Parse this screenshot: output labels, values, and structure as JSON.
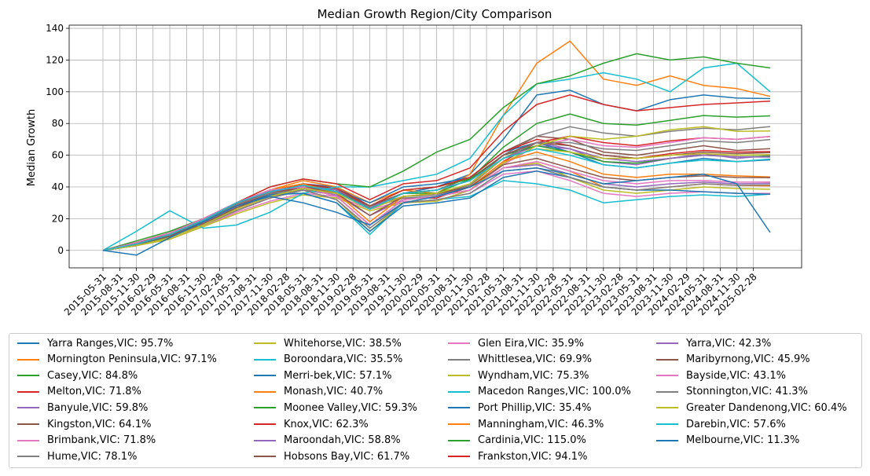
{
  "chart_data": {
    "type": "line",
    "title": "Median Growth Region/City Comparison",
    "xlabel": "",
    "ylabel": "Median Growth",
    "ylim": [
      -11,
      142
    ],
    "yticks": [
      0,
      20,
      40,
      60,
      80,
      100,
      120,
      140
    ],
    "grid": true,
    "legend_position": "below",
    "x_tick_labels": [
      "2015-05-31",
      "2015-08-31",
      "2015-11-30",
      "2016-02-29",
      "2016-05-31",
      "2016-08-31",
      "2016-11-30",
      "2017-02-28",
      "2017-05-31",
      "2017-08-31",
      "2017-11-30",
      "2018-02-28",
      "2018-05-31",
      "2018-08-31",
      "2018-11-30",
      "2019-02-28",
      "2019-05-31",
      "2019-08-31",
      "2019-11-30",
      "2020-02-29",
      "2020-05-31",
      "2020-08-31",
      "2020-11-30",
      "2021-02-28",
      "2021-05-31",
      "2021-08-31",
      "2021-11-30",
      "2022-02-28",
      "2022-05-31",
      "2022-08-31",
      "2022-11-30",
      "2023-02-28",
      "2023-05-31",
      "2023-08-31",
      "2023-11-30",
      "2024-02-29",
      "2024-05-31",
      "2024-08-31",
      "2024-11-30",
      "2025-02-28"
    ],
    "series_x": [
      "2015-05-31",
      "2015-11-30",
      "2016-05-31",
      "2016-11-30",
      "2017-05-31",
      "2017-11-30",
      "2018-05-31",
      "2018-11-30",
      "2019-05-31",
      "2019-11-30",
      "2020-05-31",
      "2020-11-30",
      "2021-05-31",
      "2021-11-30",
      "2022-05-31",
      "2022-11-30",
      "2023-05-31",
      "2023-11-30",
      "2024-05-31",
      "2024-11-30",
      "2025-05-31"
    ],
    "series": [
      {
        "name": "Yarra Ranges,VIC",
        "label": "Yarra Ranges,VIC: 95.7%",
        "color": "#1f77b4",
        "values": [
          0,
          3,
          8,
          18,
          28,
          36,
          42,
          40,
          28,
          36,
          40,
          48,
          70,
          98,
          101,
          92,
          88,
          95,
          98,
          96,
          95.7
        ]
      },
      {
        "name": "Mornington Peninsula,VIC",
        "label": "Mornington Peninsula,VIC: 97.1%",
        "color": "#ff7f0e",
        "values": [
          0,
          5,
          10,
          18,
          28,
          38,
          44,
          40,
          30,
          38,
          36,
          48,
          85,
          118,
          132,
          108,
          104,
          110,
          104,
          102,
          97.1
        ]
      },
      {
        "name": "Casey,VIC",
        "label": "Casey,VIC: 84.8%",
        "color": "#2ca02c",
        "values": [
          0,
          4,
          9,
          17,
          27,
          35,
          40,
          38,
          28,
          36,
          36,
          45,
          65,
          80,
          86,
          80,
          79,
          82,
          85,
          84,
          84.8
        ]
      },
      {
        "name": "Melton,VIC",
        "label": "Melton,VIC: 71.8%",
        "color": "#d62728",
        "values": [
          0,
          4,
          8,
          16,
          25,
          33,
          38,
          36,
          27,
          33,
          33,
          40,
          56,
          68,
          72,
          68,
          66,
          69,
          71,
          70,
          71.8
        ]
      },
      {
        "name": "Banyule,VIC",
        "label": "Banyule,VIC: 59.8%",
        "color": "#9467bd",
        "values": [
          0,
          3,
          8,
          17,
          27,
          34,
          38,
          35,
          22,
          32,
          34,
          42,
          58,
          66,
          64,
          56,
          54,
          58,
          61,
          58,
          59.8
        ]
      },
      {
        "name": "Kingston,VIC",
        "label": "Kingston,VIC: 64.1%",
        "color": "#8c564b",
        "values": [
          0,
          4,
          9,
          18,
          28,
          36,
          41,
          38,
          26,
          36,
          38,
          46,
          62,
          72,
          70,
          62,
          60,
          63,
          66,
          63,
          64.1
        ]
      },
      {
        "name": "Brimbank,VIC",
        "label": "Brimbank,VIC: 71.8%",
        "color": "#e377c2",
        "values": [
          0,
          3,
          7,
          15,
          24,
          31,
          36,
          34,
          26,
          31,
          31,
          38,
          54,
          66,
          70,
          66,
          65,
          68,
          71,
          70,
          71.8
        ]
      },
      {
        "name": "Hume,VIC",
        "label": "Hume,VIC: 78.1%",
        "color": "#7f7f7f",
        "values": [
          0,
          4,
          9,
          17,
          26,
          34,
          39,
          37,
          28,
          34,
          35,
          42,
          60,
          72,
          78,
          74,
          72,
          75,
          77,
          76,
          78.1
        ]
      },
      {
        "name": "Whitehorse,VIC",
        "label": "Whitehorse,VIC: 38.5%",
        "color": "#bcbd22",
        "values": [
          0,
          5,
          11,
          19,
          29,
          36,
          38,
          32,
          12,
          30,
          34,
          38,
          52,
          55,
          46,
          38,
          36,
          38,
          40,
          39,
          38.5
        ]
      },
      {
        "name": "Boroondara,VIC",
        "label": "Boroondara,VIC: 35.5%",
        "color": "#17becf",
        "values": [
          0,
          4,
          10,
          18,
          28,
          36,
          36,
          30,
          10,
          30,
          32,
          34,
          44,
          42,
          38,
          30,
          32,
          34,
          35,
          34,
          35.5
        ]
      },
      {
        "name": "Merri-bek,VIC",
        "label": "Merri-bek,VIC: 57.1%",
        "color": "#1f77b4",
        "values": [
          0,
          4,
          10,
          19,
          30,
          38,
          42,
          38,
          30,
          40,
          42,
          46,
          62,
          68,
          62,
          54,
          52,
          55,
          58,
          56,
          57.1
        ]
      },
      {
        "name": "Monash,VIC",
        "label": "Monash,VIC: 40.7%",
        "color": "#ff7f0e",
        "values": [
          0,
          4,
          10,
          19,
          30,
          37,
          40,
          34,
          16,
          32,
          34,
          38,
          52,
          56,
          50,
          40,
          38,
          40,
          42,
          41,
          40.7
        ]
      },
      {
        "name": "Moonee Valley,VIC",
        "label": "Moonee Valley,VIC: 59.3%",
        "color": "#2ca02c",
        "values": [
          0,
          4,
          9,
          18,
          29,
          37,
          42,
          38,
          28,
          38,
          40,
          45,
          60,
          66,
          62,
          56,
          55,
          58,
          60,
          59,
          59.3
        ]
      },
      {
        "name": "Knox,VIC",
        "label": "Knox,VIC: 62.3%",
        "color": "#d62728",
        "values": [
          0,
          5,
          10,
          19,
          29,
          37,
          42,
          39,
          28,
          38,
          40,
          46,
          62,
          70,
          66,
          60,
          58,
          61,
          63,
          62,
          62.3
        ]
      },
      {
        "name": "Maroondah,VIC",
        "label": "Maroondah,VIC: 58.8%",
        "color": "#9467bd",
        "values": [
          0,
          4,
          9,
          18,
          28,
          36,
          41,
          38,
          27,
          36,
          38,
          44,
          60,
          68,
          64,
          58,
          56,
          58,
          60,
          59,
          58.8
        ]
      },
      {
        "name": "Hobsons Bay,VIC",
        "label": "Hobsons Bay,VIC: 61.7%",
        "color": "#8c564b",
        "values": [
          0,
          3,
          8,
          17,
          27,
          35,
          40,
          37,
          28,
          36,
          38,
          44,
          60,
          68,
          66,
          60,
          58,
          60,
          62,
          61,
          61.7
        ]
      },
      {
        "name": "Glen Eira,VIC",
        "label": "Glen Eira,VIC: 35.9%",
        "color": "#e377c2",
        "values": [
          0,
          4,
          10,
          19,
          29,
          36,
          38,
          32,
          14,
          30,
          32,
          36,
          48,
          50,
          44,
          36,
          34,
          36,
          37,
          36,
          35.9
        ]
      },
      {
        "name": "Whittlesea,VIC",
        "label": "Whittlesea,VIC: 69.9%",
        "color": "#7f7f7f",
        "values": [
          0,
          4,
          8,
          16,
          25,
          33,
          38,
          36,
          27,
          33,
          34,
          41,
          58,
          68,
          68,
          64,
          63,
          66,
          69,
          68,
          69.9
        ]
      },
      {
        "name": "Wyndham,VIC",
        "label": "Wyndham,VIC: 75.3%",
        "color": "#bcbd22",
        "values": [
          0,
          3,
          7,
          15,
          23,
          30,
          35,
          33,
          25,
          30,
          31,
          38,
          55,
          66,
          72,
          70,
          72,
          76,
          78,
          75,
          75.3
        ]
      },
      {
        "name": "Macedon Ranges,VIC",
        "label": "Macedon Ranges,VIC: 100.0%",
        "color": "#17becf",
        "values": [
          0,
          12,
          25,
          14,
          16,
          24,
          36,
          40,
          40,
          44,
          48,
          58,
          85,
          105,
          108,
          112,
          108,
          100,
          115,
          118,
          100.0
        ]
      },
      {
        "name": "Port Phillip,VIC",
        "label": "Port Phillip,VIC: 35.4%",
        "color": "#1f77b4",
        "values": [
          0,
          3,
          9,
          18,
          28,
          35,
          36,
          30,
          12,
          28,
          30,
          33,
          46,
          50,
          46,
          40,
          38,
          38,
          37,
          36,
          35.4
        ]
      },
      {
        "name": "Manningham,VIC",
        "label": "Manningham,VIC: 46.3%",
        "color": "#ff7f0e",
        "values": [
          0,
          4,
          10,
          19,
          30,
          38,
          42,
          36,
          18,
          34,
          36,
          40,
          56,
          62,
          56,
          48,
          46,
          48,
          48,
          47,
          46.3
        ]
      },
      {
        "name": "Cardinia,VIC",
        "label": "Cardinia,VIC: 115.0%",
        "color": "#2ca02c",
        "values": [
          0,
          6,
          12,
          20,
          30,
          40,
          45,
          42,
          40,
          50,
          62,
          70,
          90,
          105,
          110,
          118,
          124,
          120,
          122,
          118,
          115.0
        ]
      },
      {
        "name": "Frankston,VIC",
        "label": "Frankston,VIC: 94.1%",
        "color": "#d62728",
        "values": [
          0,
          5,
          11,
          20,
          30,
          40,
          45,
          42,
          32,
          42,
          44,
          52,
          75,
          92,
          98,
          92,
          88,
          90,
          92,
          93,
          94.1
        ]
      },
      {
        "name": "Yarra,VIC",
        "label": "Yarra,VIC: 42.3%",
        "color": "#9467bd",
        "values": [
          0,
          4,
          10,
          19,
          30,
          38,
          40,
          34,
          16,
          32,
          34,
          38,
          52,
          54,
          48,
          42,
          40,
          42,
          43,
          42,
          42.3
        ]
      },
      {
        "name": "Maribyrnong,VIC",
        "label": "Maribyrnong,VIC: 45.9%",
        "color": "#8c564b",
        "values": [
          0,
          4,
          9,
          18,
          28,
          36,
          40,
          36,
          22,
          34,
          36,
          40,
          54,
          58,
          52,
          46,
          44,
          46,
          47,
          46,
          45.9
        ]
      },
      {
        "name": "Bayside,VIC",
        "label": "Bayside,VIC: 43.1%",
        "color": "#e377c2",
        "values": [
          0,
          5,
          11,
          20,
          30,
          38,
          40,
          34,
          16,
          32,
          34,
          38,
          52,
          56,
          50,
          44,
          42,
          44,
          44,
          43,
          43.1
        ]
      },
      {
        "name": "Stonnington,VIC",
        "label": "Stonnington,VIC: 41.3%",
        "color": "#7f7f7f",
        "values": [
          0,
          4,
          10,
          19,
          29,
          36,
          38,
          32,
          14,
          30,
          32,
          36,
          50,
          52,
          46,
          40,
          38,
          40,
          42,
          41,
          41.3
        ]
      },
      {
        "name": "Greater Dandenong,VIC",
        "label": "Greater Dandenong,VIC: 60.4%",
        "color": "#bcbd22",
        "values": [
          0,
          3,
          8,
          16,
          26,
          34,
          39,
          36,
          26,
          34,
          36,
          42,
          58,
          64,
          62,
          58,
          58,
          60,
          61,
          60,
          60.4
        ]
      },
      {
        "name": "Darebin,VIC",
        "label": "Darebin,VIC: 57.6%",
        "color": "#17becf",
        "values": [
          0,
          4,
          10,
          19,
          30,
          37,
          41,
          37,
          26,
          36,
          38,
          44,
          58,
          64,
          60,
          54,
          52,
          55,
          57,
          56,
          57.6
        ]
      },
      {
        "name": "Melbourne,VIC",
        "label": "Melbourne,VIC: 11.3%",
        "color": "#1f77b4",
        "values": [
          0,
          -3,
          8,
          18,
          28,
          34,
          30,
          24,
          16,
          30,
          34,
          40,
          50,
          52,
          48,
          42,
          44,
          46,
          48,
          42,
          11.3
        ]
      }
    ]
  }
}
